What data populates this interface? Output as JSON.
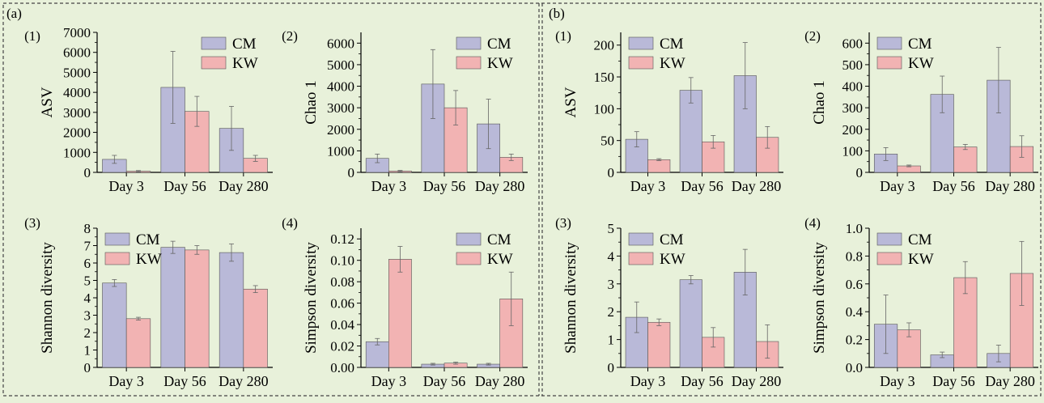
{
  "colors": {
    "background": "#e8f1da",
    "cm": "#b9b9d8",
    "kw": "#f2b3b3",
    "divider": "#444444"
  },
  "legend": {
    "cm": "CM",
    "kw": "KW"
  },
  "panels": [
    {
      "label": "(a)"
    },
    {
      "label": "(b)"
    }
  ],
  "chart_data": [
    {
      "type": "bar",
      "panel": "(a)",
      "sub": "(1)",
      "legend_position": "top-right",
      "categories": [
        "Day 3",
        "Day 56",
        "Day 280"
      ],
      "ylabel": "ASV",
      "ylim": [
        0,
        7000
      ],
      "yticks": [
        0,
        1000,
        2000,
        3000,
        4000,
        5000,
        6000,
        7000
      ],
      "series": [
        {
          "name": "CM",
          "values": [
            650,
            4250,
            2200
          ],
          "errors": [
            200,
            1800,
            1100
          ]
        },
        {
          "name": "KW",
          "values": [
            60,
            3050,
            700
          ],
          "errors": [
            30,
            750,
            150
          ]
        }
      ]
    },
    {
      "type": "bar",
      "panel": "(a)",
      "sub": "(2)",
      "legend_position": "top-right",
      "categories": [
        "Day 3",
        "Day 56",
        "Day 280"
      ],
      "ylabel": "Chao 1",
      "ylim": [
        0,
        6500
      ],
      "yticks": [
        0,
        1000,
        2000,
        3000,
        4000,
        5000,
        6000
      ],
      "series": [
        {
          "name": "CM",
          "values": [
            650,
            4100,
            2250
          ],
          "errors": [
            200,
            1600,
            1150
          ]
        },
        {
          "name": "KW",
          "values": [
            60,
            3000,
            700
          ],
          "errors": [
            30,
            800,
            150
          ]
        }
      ]
    },
    {
      "type": "bar",
      "panel": "(a)",
      "sub": "(3)",
      "legend_position": "top-left",
      "categories": [
        "Day 3",
        "Day 56",
        "Day 280"
      ],
      "ylabel": "Shannon diversity",
      "ylim": [
        0,
        8
      ],
      "yticks": [
        0,
        1,
        2,
        3,
        4,
        5,
        6,
        7,
        8
      ],
      "series": [
        {
          "name": "CM",
          "values": [
            4.85,
            6.9,
            6.6
          ],
          "errors": [
            0.2,
            0.35,
            0.5
          ]
        },
        {
          "name": "KW",
          "values": [
            2.8,
            6.75,
            4.5
          ],
          "errors": [
            0.08,
            0.25,
            0.2
          ]
        }
      ]
    },
    {
      "type": "bar",
      "panel": "(a)",
      "sub": "(4)",
      "legend_position": "top-right",
      "categories": [
        "Day 3",
        "Day 56",
        "Day 280"
      ],
      "ylabel": "Simpson diversity",
      "ylim": [
        0,
        0.13
      ],
      "yticks": [
        0,
        0.02,
        0.04,
        0.06,
        0.08,
        0.1,
        0.12
      ],
      "ytick_labels": [
        "0.00",
        "0.02",
        "0.04",
        "0.06",
        "0.08",
        "0.10",
        "0.12"
      ],
      "series": [
        {
          "name": "CM",
          "values": [
            0.024,
            0.003,
            0.003
          ],
          "errors": [
            0.003,
            0.0008,
            0.0008
          ]
        },
        {
          "name": "KW",
          "values": [
            0.101,
            0.004,
            0.064
          ],
          "errors": [
            0.012,
            0.001,
            0.025
          ]
        }
      ]
    },
    {
      "type": "bar",
      "panel": "(b)",
      "sub": "(1)",
      "legend_position": "top-left",
      "categories": [
        "Day 3",
        "Day 56",
        "Day 280"
      ],
      "ylabel": "ASV",
      "ylim": [
        0,
        220
      ],
      "yticks": [
        0,
        50,
        100,
        150,
        200
      ],
      "series": [
        {
          "name": "CM",
          "values": [
            52,
            129,
            152
          ],
          "errors": [
            12,
            20,
            52
          ]
        },
        {
          "name": "KW",
          "values": [
            20,
            48,
            55
          ],
          "errors": [
            1.5,
            10,
            17
          ]
        }
      ]
    },
    {
      "type": "bar",
      "panel": "(b)",
      "sub": "(2)",
      "legend_position": "top-left",
      "categories": [
        "Day 3",
        "Day 56",
        "Day 280"
      ],
      "ylabel": "Chao 1",
      "ylim": [
        0,
        650
      ],
      "yticks": [
        0,
        100,
        200,
        300,
        400,
        500,
        600
      ],
      "series": [
        {
          "name": "CM",
          "values": [
            85,
            362,
            428
          ],
          "errors": [
            30,
            85,
            152
          ]
        },
        {
          "name": "KW",
          "values": [
            30,
            118,
            120
          ],
          "errors": [
            4,
            12,
            50
          ]
        }
      ]
    },
    {
      "type": "bar",
      "panel": "(b)",
      "sub": "(3)",
      "legend_position": "top-left",
      "categories": [
        "Day 3",
        "Day 56",
        "Day 280"
      ],
      "ylabel": "Shannon diversity",
      "ylim": [
        0,
        5
      ],
      "yticks": [
        0,
        1,
        2,
        3,
        4,
        5
      ],
      "series": [
        {
          "name": "CM",
          "values": [
            1.8,
            3.15,
            3.42
          ],
          "errors": [
            0.55,
            0.15,
            0.82
          ]
        },
        {
          "name": "KW",
          "values": [
            1.62,
            1.08,
            0.93
          ],
          "errors": [
            0.12,
            0.35,
            0.6
          ]
        }
      ]
    },
    {
      "type": "bar",
      "panel": "(b)",
      "sub": "(4)",
      "legend_position": "top-left",
      "categories": [
        "Day 3",
        "Day 56",
        "Day 280"
      ],
      "ylabel": "Simpson diversity",
      "ylim": [
        0,
        1.0
      ],
      "yticks": [
        0,
        0.2,
        0.4,
        0.6,
        0.8,
        1.0
      ],
      "ytick_labels": [
        "0.0",
        "0.2",
        "0.4",
        "0.6",
        "0.8",
        "1.0"
      ],
      "series": [
        {
          "name": "CM",
          "values": [
            0.31,
            0.09,
            0.1
          ],
          "errors": [
            0.21,
            0.02,
            0.06
          ]
        },
        {
          "name": "KW",
          "values": [
            0.27,
            0.645,
            0.675
          ],
          "errors": [
            0.05,
            0.115,
            0.23
          ]
        }
      ]
    }
  ]
}
